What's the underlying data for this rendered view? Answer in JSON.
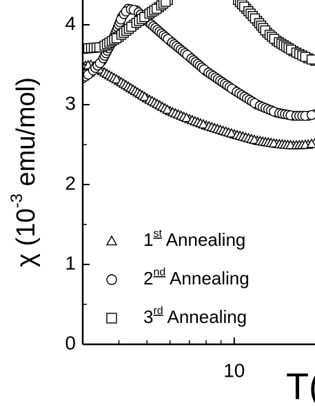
{
  "chart_data": {
    "type": "scatter",
    "y_label": [
      "χ (10",
      "-3",
      " emu/mol)"
    ],
    "x_label": "T(",
    "xscale": "log",
    "xlim": [
      3,
      19
    ],
    "ylim": [
      0,
      4.31
    ],
    "xticks": [
      10
    ],
    "xminorticks": [
      3,
      4,
      5,
      6,
      7,
      8,
      9
    ],
    "yticks": [
      0,
      1,
      2,
      3,
      4
    ],
    "yminorticks": [
      0.5,
      1.5,
      2.5,
      3.5
    ],
    "color": "#000000",
    "series": [
      {
        "name": [
          "1",
          "st",
          " Annealing"
        ],
        "marker": "triangle",
        "x": [
          3.0,
          3.2,
          3.5,
          4,
          5,
          6,
          7,
          8,
          10,
          12,
          14,
          16,
          18,
          19
        ],
        "values": [
          3.48,
          3.5,
          3.42,
          3.3,
          3.08,
          2.92,
          2.82,
          2.74,
          2.63,
          2.55,
          2.51,
          2.49,
          2.5,
          2.52
        ]
      },
      {
        "name": [
          "2",
          "nd",
          " Annealing"
        ],
        "marker": "circle",
        "x": [
          3.0,
          3.2,
          3.5,
          3.8,
          4.1,
          4.3,
          4.6,
          5,
          6,
          7,
          8,
          10,
          12,
          14,
          16,
          18,
          19
        ],
        "values": [
          3.33,
          3.4,
          3.55,
          3.8,
          4.1,
          4.2,
          4.18,
          4.05,
          3.8,
          3.6,
          3.42,
          3.18,
          3.0,
          2.9,
          2.86,
          2.86,
          2.88
        ]
      },
      {
        "name": [
          "3",
          "rd",
          " Annealing"
        ],
        "marker": "square",
        "x": [
          3.0,
          3.5,
          4,
          4.5,
          5,
          5.5,
          5.9,
          8,
          10.3,
          11,
          12,
          13,
          14,
          16,
          18,
          19
        ],
        "values": [
          3.7,
          3.72,
          3.85,
          4.0,
          4.12,
          4.22,
          4.31,
          null,
          4.31,
          4.2,
          4.05,
          3.9,
          3.8,
          3.67,
          3.58,
          3.55
        ]
      }
    ]
  }
}
